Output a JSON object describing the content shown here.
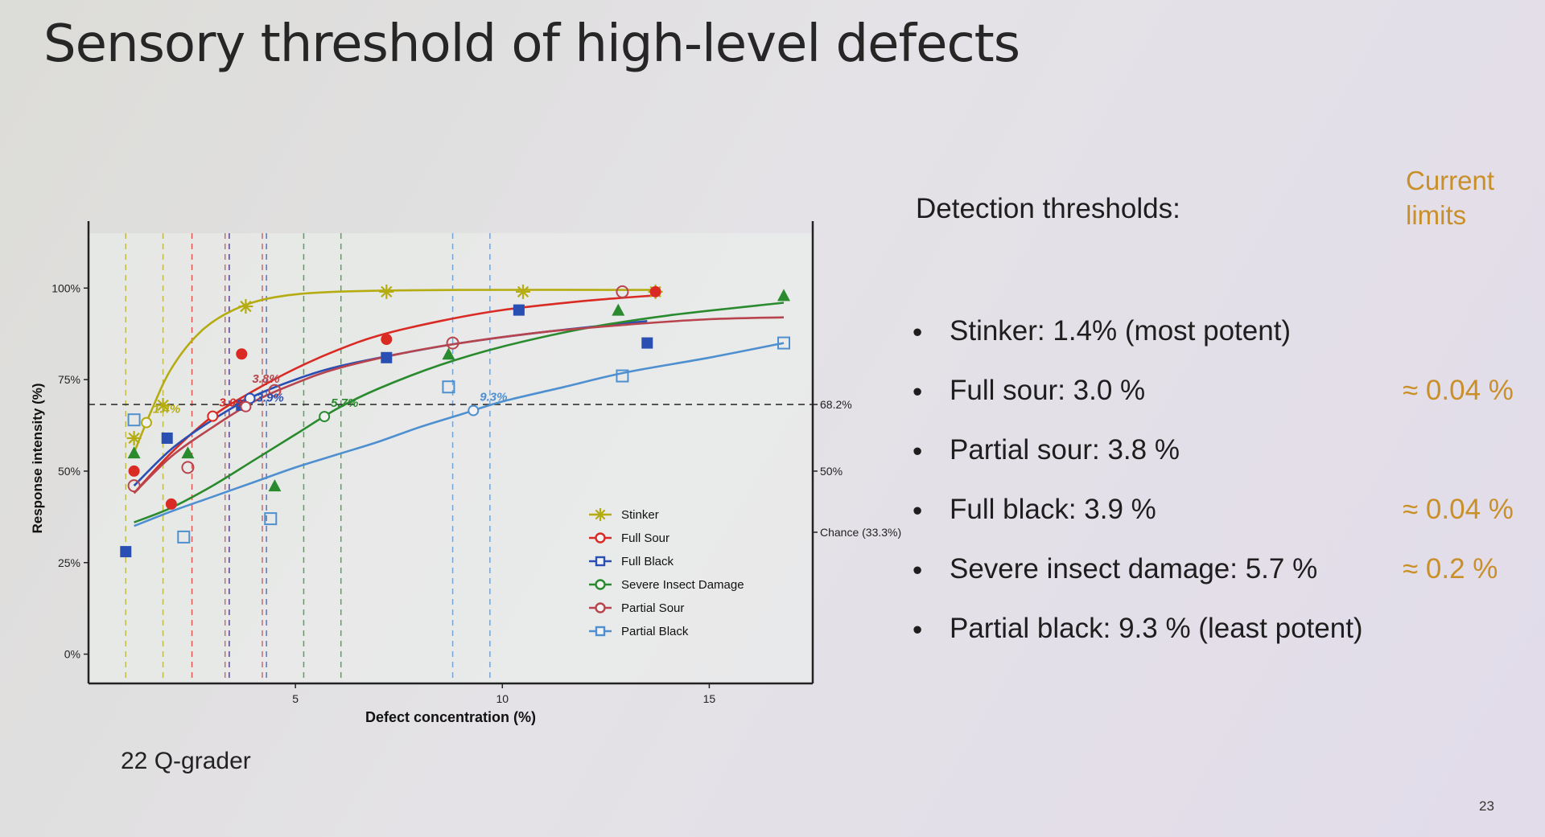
{
  "slide": {
    "title": "Sensory threshold of high-level defects",
    "footnote": "22 Q-grader",
    "page_number": "23"
  },
  "panel": {
    "heading": "Detection thresholds:",
    "limits_heading_line1": "Current",
    "limits_heading_line2": "limits",
    "bullet_symbol": "•",
    "items": [
      {
        "text": "Stinker: 1.4% (most potent)",
        "limit": ""
      },
      {
        "text": "Full sour: 3.0 %",
        "limit": "≈ 0.04 %"
      },
      {
        "text": "Partial sour: 3.8 %",
        "limit": ""
      },
      {
        "text": "Full black: 3.9 %",
        "limit": "≈ 0.04 %"
      },
      {
        "text": "Severe insect damage: 5.7 %",
        "limit": "≈ 0.2 %"
      },
      {
        "text": "Partial black: 9.3 % (least potent)",
        "limit": ""
      }
    ]
  },
  "chart_data": {
    "type": "scatter",
    "xlabel": "Defect concentration (%)",
    "ylabel": "Response intensity (%)",
    "xlim": [
      0,
      17.5
    ],
    "ylim": [
      -8,
      115
    ],
    "x_ticks": [
      5,
      10,
      15
    ],
    "y_ticks": [
      {
        "value": 0,
        "label": "0%"
      },
      {
        "value": 25,
        "label": "25%"
      },
      {
        "value": 50,
        "label": "50%"
      },
      {
        "value": 75,
        "label": "75%"
      },
      {
        "value": 100,
        "label": "100%"
      }
    ],
    "right_ticks": [
      {
        "value": 68.2,
        "label": "68.2%"
      },
      {
        "value": 50,
        "label": "50%"
      },
      {
        "value": 33.3,
        "label": "Chance (33.3%)"
      }
    ],
    "reference_line": 68.2,
    "grid": false,
    "legend_position": "bottom-right",
    "series": [
      {
        "name": "Stinker",
        "color": "#b5ac12",
        "marker": "star",
        "points": [
          [
            1.1,
            59
          ],
          [
            1.8,
            68
          ],
          [
            3.8,
            95
          ],
          [
            7.2,
            99
          ],
          [
            10.5,
            99
          ],
          [
            13.7,
            99
          ]
        ],
        "curve": [
          [
            1.1,
            55
          ],
          [
            1.5,
            66
          ],
          [
            2.0,
            78
          ],
          [
            2.7,
            88
          ],
          [
            3.5,
            94
          ],
          [
            4.5,
            97.5
          ],
          [
            6,
            99
          ],
          [
            9,
            99.5
          ],
          [
            13.7,
            99.5
          ]
        ],
        "threshold": 1.4,
        "threshold_label": "1.4%"
      },
      {
        "name": "Full Sour",
        "color": "#d92a24",
        "marker": "circle",
        "points": [
          [
            1.1,
            50
          ],
          [
            2.0,
            41
          ],
          [
            3.7,
            82
          ],
          [
            7.2,
            86
          ],
          [
            10.4,
            94
          ],
          [
            13.7,
            99
          ]
        ],
        "curve": [
          [
            1.1,
            44
          ],
          [
            2,
            55
          ],
          [
            3,
            65
          ],
          [
            4,
            72
          ],
          [
            5,
            78
          ],
          [
            6,
            83
          ],
          [
            7,
            87
          ],
          [
            8.5,
            91
          ],
          [
            10,
            94
          ],
          [
            12,
            96.5
          ],
          [
            13.7,
            98
          ]
        ],
        "threshold": 3.0,
        "threshold_label": "3.0%"
      },
      {
        "name": "Full Black",
        "color": "#2a4fb3",
        "marker": "square",
        "points": [
          [
            0.9,
            28
          ],
          [
            1.9,
            59
          ],
          [
            3.7,
            68
          ],
          [
            7.2,
            81
          ],
          [
            10.4,
            94
          ],
          [
            13.5,
            85
          ]
        ],
        "curve": [
          [
            1.1,
            46
          ],
          [
            2,
            56
          ],
          [
            3,
            64
          ],
          [
            4,
            70.5
          ],
          [
            5,
            75
          ],
          [
            6,
            78.5
          ],
          [
            7.5,
            82
          ],
          [
            9,
            85
          ],
          [
            11,
            88
          ],
          [
            13.5,
            91
          ]
        ],
        "threshold": 3.9,
        "threshold_label": "3.9%"
      },
      {
        "name": "Severe Insect Damage",
        "color": "#2a8a2e",
        "marker": "triangle",
        "points": [
          [
            1.1,
            55
          ],
          [
            2.4,
            55
          ],
          [
            4.5,
            46
          ],
          [
            8.7,
            82
          ],
          [
            12.8,
            94
          ],
          [
            16.8,
            98
          ]
        ],
        "curve": [
          [
            1.1,
            36
          ],
          [
            2,
            40
          ],
          [
            3,
            46
          ],
          [
            4,
            53
          ],
          [
            5,
            60
          ],
          [
            6,
            67
          ],
          [
            7,
            72.5
          ],
          [
            8.5,
            79
          ],
          [
            10,
            84
          ],
          [
            12,
            89
          ],
          [
            14,
            92.5
          ],
          [
            16.8,
            96
          ]
        ],
        "threshold": 5.7,
        "threshold_label": "5.7%"
      },
      {
        "name": "Partial Sour",
        "color": "#b8444e",
        "marker": "circle-open",
        "points": [
          [
            1.1,
            46
          ],
          [
            2.4,
            51
          ],
          [
            4.5,
            72
          ],
          [
            8.8,
            85
          ],
          [
            12.9,
            99
          ]
        ],
        "curve": [
          [
            1.1,
            44
          ],
          [
            2,
            54
          ],
          [
            3,
            62
          ],
          [
            4,
            69
          ],
          [
            5,
            74
          ],
          [
            6,
            78
          ],
          [
            7.5,
            82
          ],
          [
            9,
            85
          ],
          [
            11,
            88
          ],
          [
            13,
            90
          ],
          [
            15,
            91.5
          ],
          [
            16.8,
            92
          ]
        ],
        "threshold": 3.8,
        "threshold_label": "3.8%"
      },
      {
        "name": "Partial Black",
        "color": "#4e8fd0",
        "marker": "square-open",
        "points": [
          [
            1.1,
            64
          ],
          [
            2.3,
            32
          ],
          [
            4.4,
            37
          ],
          [
            8.7,
            73
          ],
          [
            12.9,
            76
          ],
          [
            16.8,
            85
          ]
        ],
        "curve": [
          [
            1.1,
            35
          ],
          [
            2,
            39
          ],
          [
            3,
            43
          ],
          [
            4,
            47
          ],
          [
            5,
            51
          ],
          [
            6,
            54.5
          ],
          [
            7,
            58
          ],
          [
            8,
            62
          ],
          [
            9,
            65.5
          ],
          [
            10,
            69
          ],
          [
            11.5,
            73
          ],
          [
            13,
            77
          ],
          [
            15,
            81
          ],
          [
            16.8,
            85
          ]
        ],
        "threshold": 9.3,
        "threshold_label": "9.3%"
      }
    ]
  }
}
